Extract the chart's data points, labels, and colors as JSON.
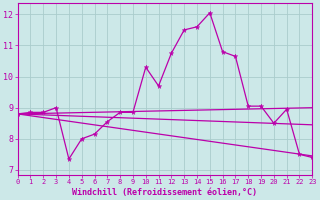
{
  "xlabel": "Windchill (Refroidissement éolien,°C)",
  "background_color": "#cce8e8",
  "grid_color": "#aacccc",
  "line_color": "#bb00aa",
  "xlim": [
    0,
    23
  ],
  "ylim": [
    6.85,
    12.35
  ],
  "yticks": [
    7,
    8,
    9,
    10,
    11,
    12
  ],
  "xticks": [
    0,
    1,
    2,
    3,
    4,
    5,
    6,
    7,
    8,
    9,
    10,
    11,
    12,
    13,
    14,
    15,
    16,
    17,
    18,
    19,
    20,
    21,
    22,
    23
  ],
  "line1_x": [
    0,
    1,
    2,
    3,
    4,
    5,
    6,
    7,
    8,
    9,
    10,
    11,
    12,
    13,
    14,
    15,
    16,
    17,
    18,
    19,
    20,
    21,
    22,
    23
  ],
  "line1_y": [
    8.8,
    8.85,
    8.85,
    9.0,
    7.35,
    8.0,
    8.15,
    8.55,
    8.85,
    8.85,
    10.3,
    9.7,
    10.75,
    11.5,
    11.6,
    12.05,
    10.8,
    10.65,
    9.05,
    9.05,
    8.5,
    8.95,
    7.5,
    7.4
  ],
  "line2_x": [
    0,
    23
  ],
  "line2_y": [
    8.8,
    9.0
  ],
  "line3_x": [
    0,
    23
  ],
  "line3_y": [
    8.8,
    8.45
  ],
  "line4_x": [
    0,
    23
  ],
  "line4_y": [
    8.8,
    7.45
  ]
}
